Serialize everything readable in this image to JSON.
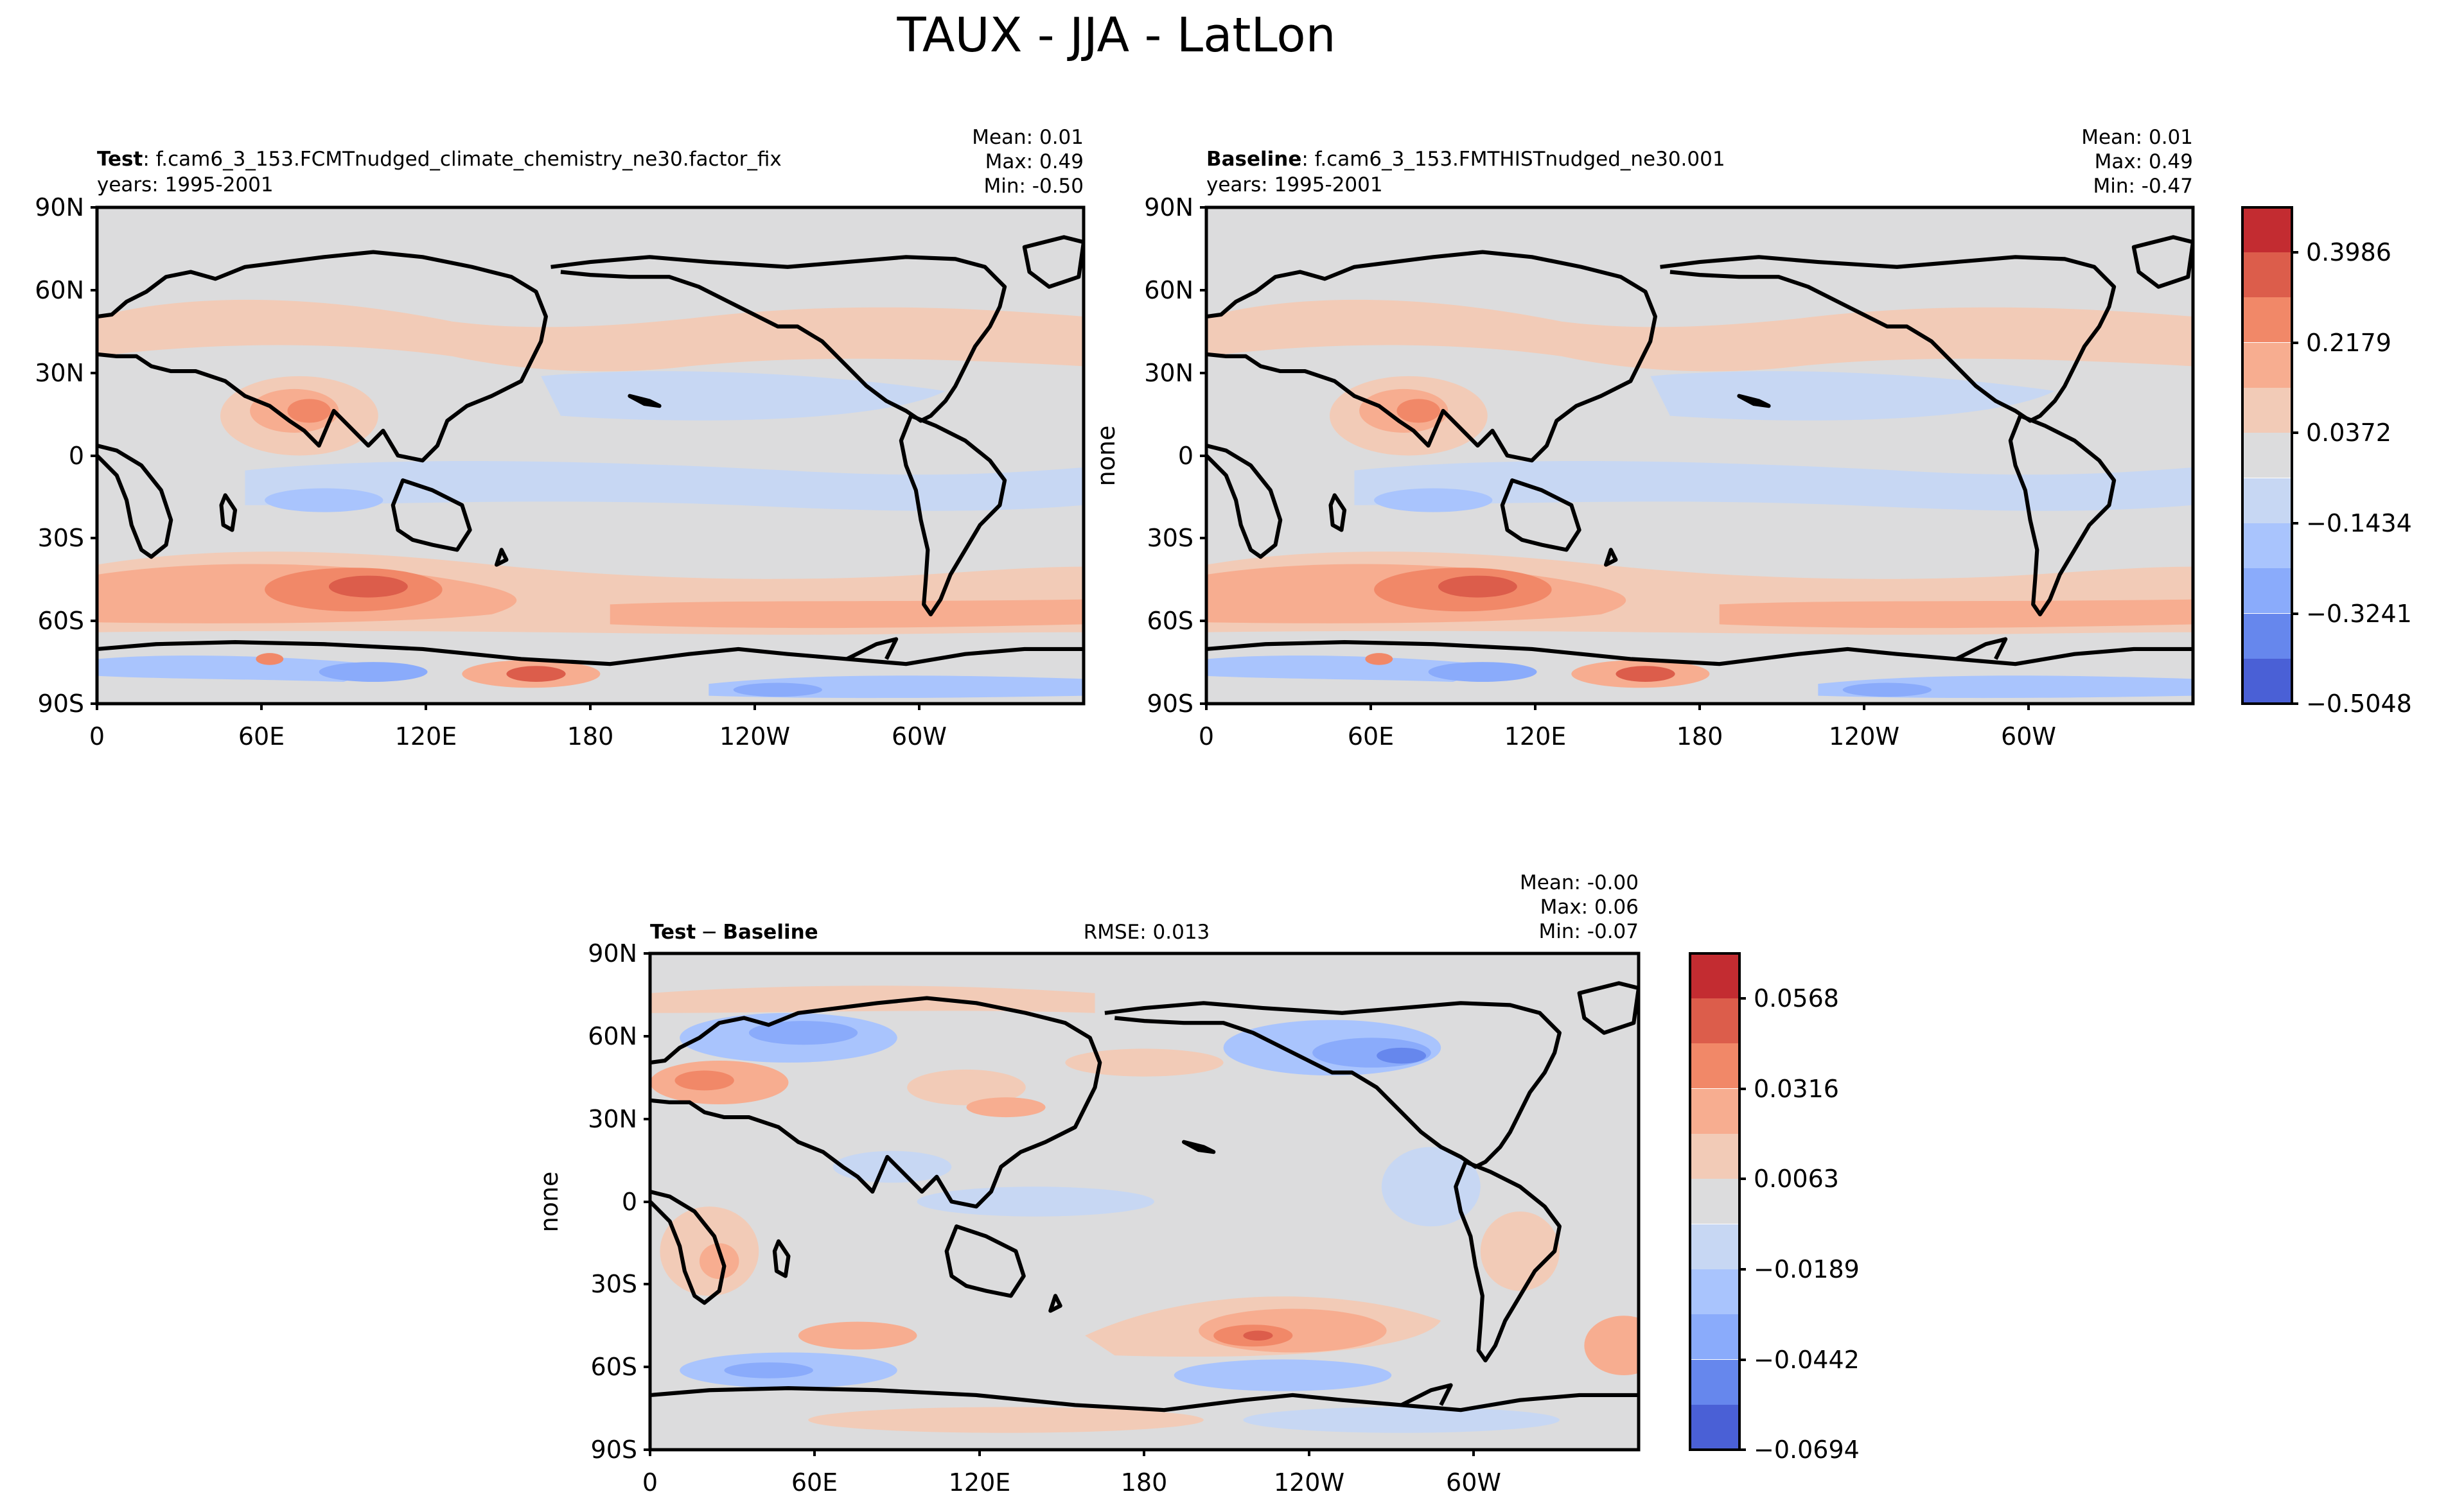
{
  "figure_title": "TAUX - JJA - LatLon",
  "colors": {
    "levels_top": [
      "#4a60d6",
      "#6687ed",
      "#8aabfb",
      "#a9c4fd",
      "#c7d7f3",
      "#dcdcdd",
      "#f2cbb7",
      "#f7ad90",
      "#f18868",
      "#dc5d4b",
      "#c32c31"
    ],
    "land_fill": "#dcdcdd",
    "coast": "#000000"
  },
  "panels": [
    {
      "id": "test",
      "name_label": "Test",
      "case_text": ": f.cam6_3_153.FCMTnudged_climate_chemistry_ne30.factor_fix",
      "years_text": "years: 1995-2001",
      "stats": [
        "Mean:  0.01",
        "Max:  0.49",
        "Min: -0.50"
      ],
      "ylabel": ""
    },
    {
      "id": "baseline",
      "name_label": "Baseline",
      "case_text": ": f.cam6_3_153.FMTHISTnudged_ne30.001",
      "years_text": "years: 1995-2001",
      "stats": [
        "Mean:  0.01",
        "Max:  0.49",
        "Min: -0.47"
      ],
      "ylabel": "none"
    },
    {
      "id": "diff",
      "name_label": "Test",
      "name_label_2": "Baseline",
      "minus": "−",
      "rmse_text": "RMSE: 0.013",
      "stats": [
        "Mean: -0.00",
        "Max:  0.06",
        "Min: -0.07"
      ],
      "ylabel": "none"
    }
  ],
  "axes": {
    "lat_ticks": [
      "90N",
      "60N",
      "30N",
      "0",
      "30S",
      "60S",
      "90S"
    ],
    "lon_ticks": [
      "0",
      "60E",
      "120E",
      "180",
      "120W",
      "60W"
    ]
  },
  "colorbars": {
    "top": {
      "ticks": [
        "0.3986",
        "0.2179",
        "0.0372",
        "−0.1434",
        "−0.3241",
        "−0.5048"
      ]
    },
    "diff": {
      "ticks": [
        "0.0568",
        "0.0316",
        "0.0063",
        "−0.0189",
        "−0.0442",
        "−0.0694"
      ]
    }
  }
}
